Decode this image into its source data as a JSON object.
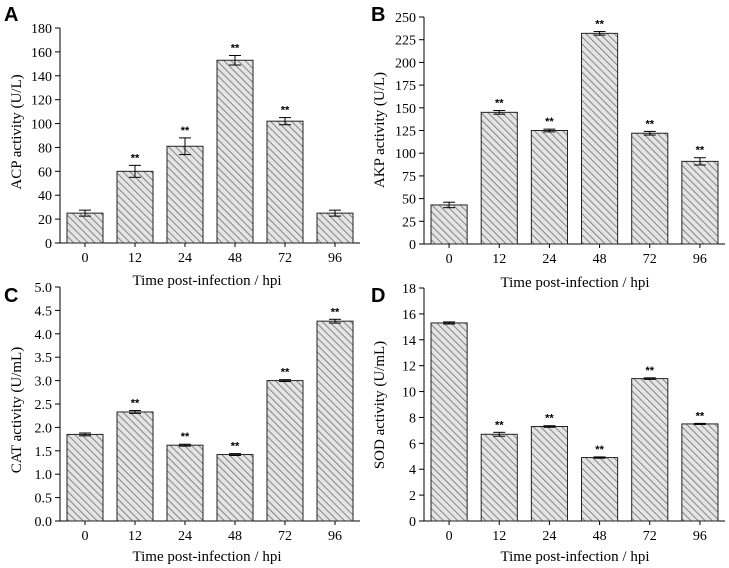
{
  "chart_data": [
    {
      "type": "bar",
      "panel": "A",
      "categories": [
        "0",
        "12",
        "24",
        "48",
        "72",
        "96"
      ],
      "values": [
        25,
        60,
        81,
        153,
        102,
        25
      ],
      "errors": [
        2.5,
        5,
        7,
        4,
        3,
        2.5
      ],
      "significance": [
        "",
        "**",
        "**",
        "**",
        "**",
        ""
      ],
      "xlabel": "Time post-infection / hpi",
      "ylabel": "ACP activity (U/L)",
      "ylim": [
        0,
        180
      ],
      "yticks": [
        0,
        20,
        40,
        60,
        80,
        100,
        120,
        140,
        160,
        180
      ],
      "grid": false
    },
    {
      "type": "bar",
      "panel": "B",
      "categories": [
        "0",
        "12",
        "24",
        "48",
        "72",
        "96"
      ],
      "values": [
        43,
        145,
        125,
        232,
        122,
        91
      ],
      "errors": [
        3,
        2,
        1.5,
        2,
        2,
        4
      ],
      "significance": [
        "",
        "**",
        "**",
        "**",
        "**",
        "**"
      ],
      "xlabel": "Time post-infection / hpi",
      "ylabel": "AKP activity (U/L)",
      "ylim": [
        0,
        250
      ],
      "yticks": [
        0,
        25,
        50,
        75,
        100,
        125,
        150,
        175,
        200,
        225,
        250
      ],
      "grid": false
    },
    {
      "type": "bar",
      "panel": "C",
      "categories": [
        "0",
        "12",
        "24",
        "48",
        "72",
        "96"
      ],
      "values": [
        1.85,
        2.33,
        1.62,
        1.42,
        3.0,
        4.27
      ],
      "errors": [
        0.03,
        0.03,
        0.02,
        0.02,
        0.02,
        0.04
      ],
      "significance": [
        "",
        "**",
        "**",
        "**",
        "**",
        "**"
      ],
      "xlabel": "Time post-infection / hpi",
      "ylabel": "CAT activity (U/mL)",
      "ylim": [
        0,
        5.0
      ],
      "yticks": [
        "0.0",
        "0.5",
        "1.0",
        "1.5",
        "2.0",
        "2.5",
        "3.0",
        "3.5",
        "4.0",
        "4.5",
        "5.0"
      ],
      "grid": false
    },
    {
      "type": "bar",
      "panel": "D",
      "categories": [
        "0",
        "12",
        "24",
        "48",
        "72",
        "96"
      ],
      "values": [
        15.3,
        6.7,
        7.3,
        4.9,
        11.0,
        7.5
      ],
      "errors": [
        0.08,
        0.15,
        0.06,
        0.05,
        0.06,
        0.04
      ],
      "significance": [
        "",
        "**",
        "**",
        "**",
        "**",
        "**"
      ],
      "xlabel": "Time post-infection / hpi",
      "ylabel": "SOD activity (U/mL)",
      "ylim": [
        0,
        18
      ],
      "yticks": [
        0,
        2,
        4,
        6,
        8,
        10,
        12,
        14,
        16,
        18
      ],
      "grid": false
    }
  ],
  "colors": {
    "bar_fill_background": "#e4e4e4",
    "bar_hatch": "#6e6e6e",
    "axis": "#000000"
  }
}
